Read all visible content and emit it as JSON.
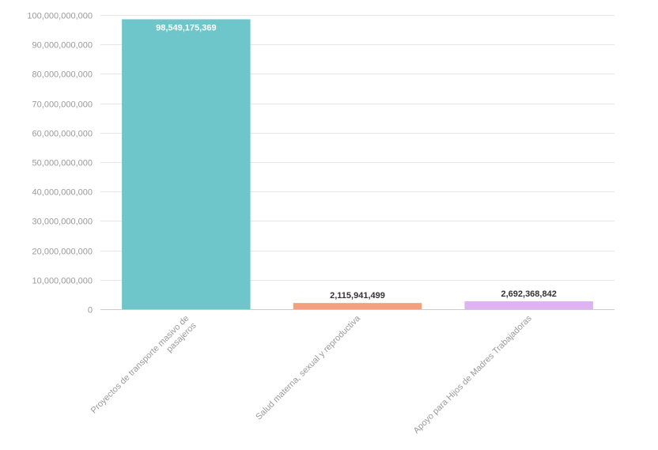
{
  "chart_data": {
    "type": "bar",
    "title": "",
    "xlabel": "",
    "ylabel": "",
    "categories": [
      "Proyectos de transporte masivo de pasajeros",
      "Salud materna, sexual y reproductiva",
      "Apoyo para Hijos de Madres Trabajadoras"
    ],
    "values": [
      98549175369,
      2115941499,
      2692368842
    ],
    "value_labels": [
      "98,549,175,369",
      "2,115,941,499",
      "2,692,368,842"
    ],
    "ylim": [
      0,
      100000000000
    ],
    "yticks": [
      0,
      10000000000,
      20000000000,
      30000000000,
      40000000000,
      50000000000,
      60000000000,
      70000000000,
      80000000000,
      90000000000,
      100000000000
    ],
    "ytick_labels": [
      "0",
      "10,000,000,000",
      "20,000,000,000",
      "30,000,000,000",
      "40,000,000,000",
      "50,000,000,000",
      "60,000,000,000",
      "70,000,000,000",
      "80,000,000,000",
      "90,000,000,000",
      "100,000,000,000"
    ],
    "colors": [
      "#6ec6ca",
      "#f4a07e",
      "#dfb2f2"
    ],
    "grid": true,
    "legend": "none"
  }
}
